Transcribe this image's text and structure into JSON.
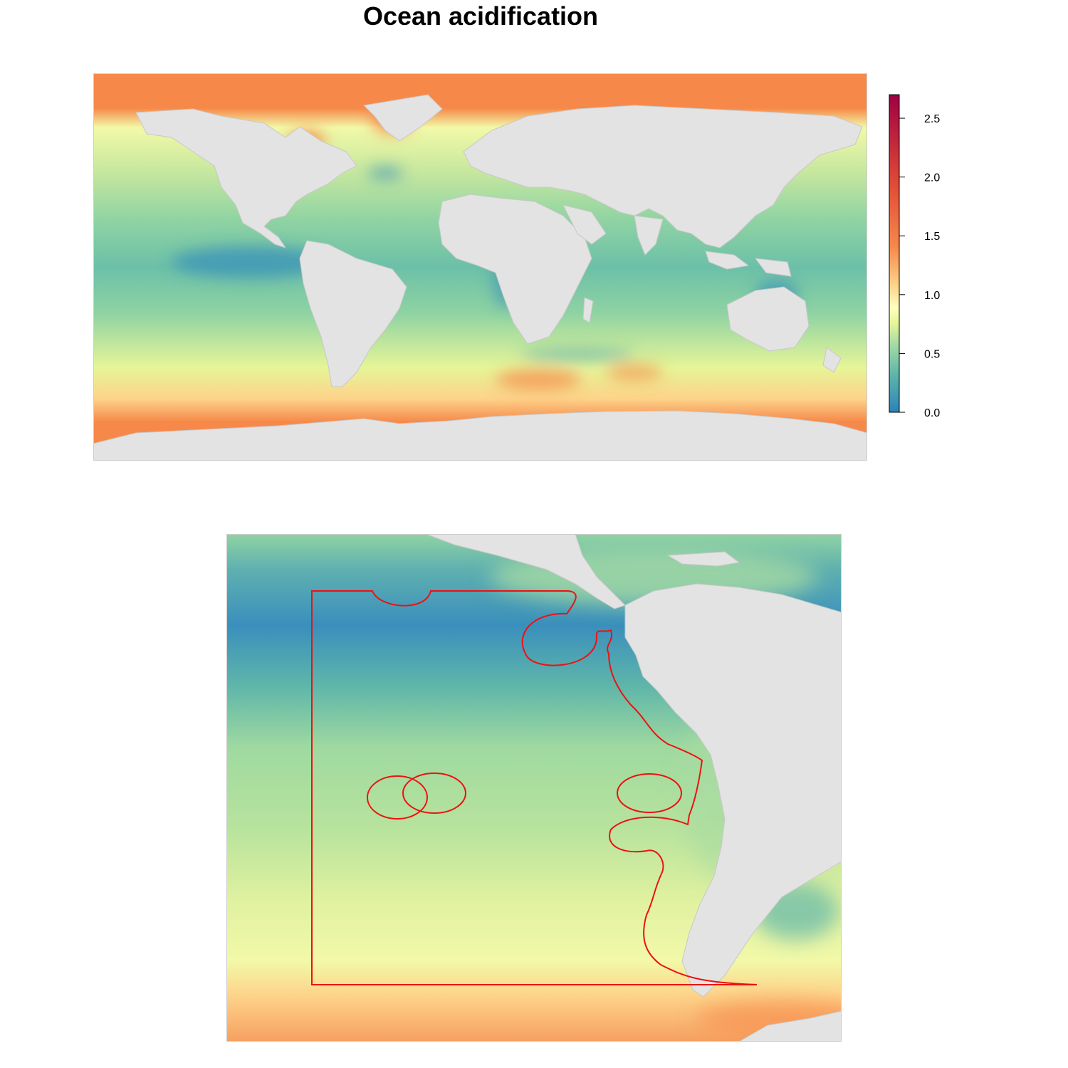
{
  "title": "Ocean acidification",
  "legend": {
    "ticks": [
      "0.0",
      "0.5",
      "1.0",
      "1.5",
      "2.0",
      "2.5"
    ],
    "tick_values": [
      0,
      0.5,
      1.0,
      1.5,
      2.0,
      2.5
    ],
    "range": [
      0,
      2.7
    ],
    "colors": [
      "#2b83ba",
      "#5fb6a9",
      "#abdda4",
      "#e6f598",
      "#ffffbf",
      "#fdd38a",
      "#f6894a",
      "#e04a37",
      "#9e0142"
    ]
  },
  "colors": {
    "land": "#e3e3e3",
    "land_border": "#c8c8c8",
    "region_outline": "#ee1111"
  },
  "panels": [
    {
      "name": "global-map",
      "extent": "world"
    },
    {
      "name": "regional-map",
      "extent": "south-east-pacific",
      "outlined_region": true
    }
  ]
}
